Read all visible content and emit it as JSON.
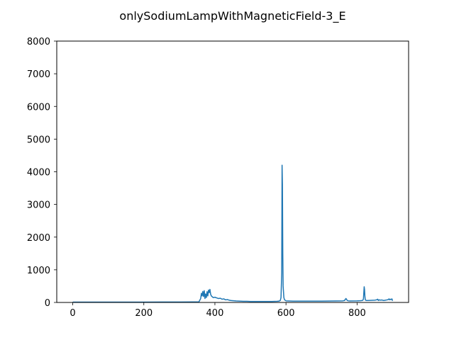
{
  "chart_data": {
    "type": "line",
    "title": "onlySodiumLampWithMagneticField-3_E",
    "xlabel": "",
    "ylabel": "",
    "xlim": [
      -45,
      945
    ],
    "ylim": [
      0,
      8000
    ],
    "xticks": [
      0,
      200,
      400,
      600,
      800
    ],
    "yticks": [
      0,
      1000,
      2000,
      3000,
      4000,
      5000,
      6000,
      7000,
      8000
    ],
    "grid": false,
    "series": [
      {
        "color": "#1f77b4",
        "x": [
          0,
          50,
          100,
          150,
          200,
          250,
          300,
          340,
          355,
          360,
          362,
          364,
          366,
          368,
          370,
          372,
          374,
          376,
          378,
          380,
          382,
          384,
          386,
          388,
          390,
          392,
          395,
          400,
          405,
          410,
          415,
          420,
          425,
          430,
          435,
          440,
          445,
          450,
          460,
          470,
          480,
          490,
          500,
          520,
          540,
          560,
          575,
          580,
          584,
          586,
          588,
          589,
          590,
          591,
          592,
          594,
          596,
          600,
          620,
          650,
          700,
          740,
          760,
          765,
          767,
          769,
          771,
          773,
          775,
          780,
          800,
          810,
          815,
          817,
          818,
          819,
          820,
          821,
          822,
          823,
          824,
          826,
          830,
          840,
          850,
          855,
          858,
          860,
          862,
          865,
          870,
          875,
          880,
          885,
          888,
          890,
          892,
          894,
          896,
          898,
          900
        ],
        "y": [
          10,
          10,
          11,
          11,
          12,
          13,
          14,
          16,
          20,
          120,
          280,
          200,
          340,
          180,
          360,
          120,
          260,
          150,
          330,
          200,
          380,
          300,
          400,
          250,
          200,
          180,
          150,
          160,
          140,
          120,
          130,
          100,
          110,
          80,
          90,
          70,
          60,
          55,
          45,
          40,
          35,
          35,
          30,
          30,
          30,
          30,
          35,
          40,
          60,
          150,
          900,
          4200,
          3600,
          1500,
          500,
          150,
          80,
          50,
          40,
          40,
          40,
          45,
          50,
          60,
          100,
          120,
          80,
          60,
          50,
          45,
          50,
          55,
          60,
          80,
          120,
          300,
          480,
          400,
          200,
          90,
          70,
          60,
          60,
          65,
          70,
          80,
          100,
          60,
          80,
          70,
          75,
          60,
          70,
          80,
          90,
          110,
          80,
          100,
          90,
          110,
          50
        ]
      }
    ]
  }
}
